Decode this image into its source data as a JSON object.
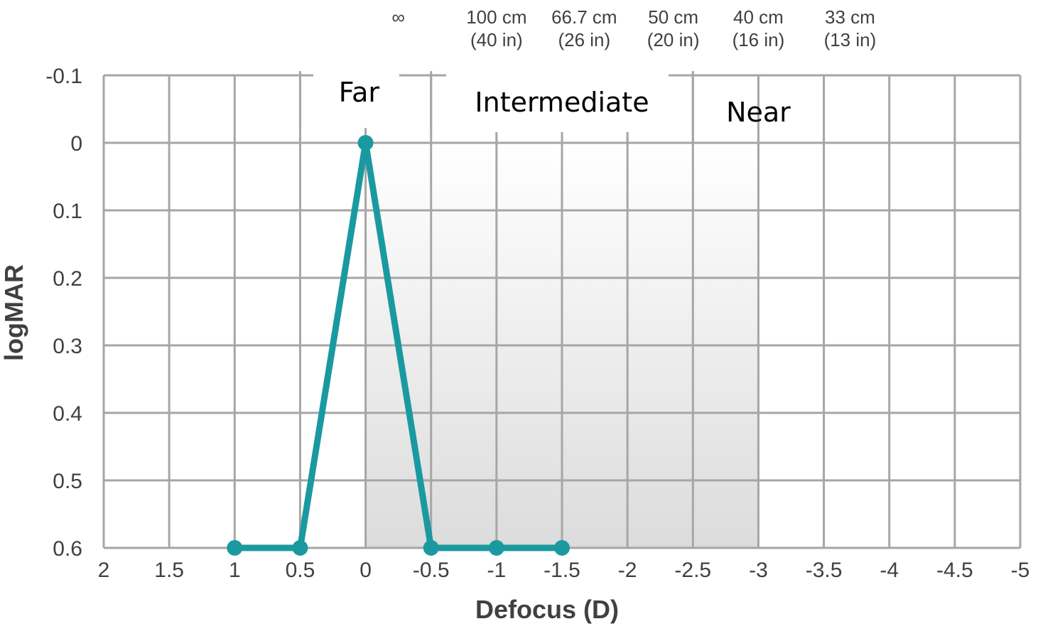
{
  "chart_data": {
    "type": "line",
    "xlabel": "Defocus (D)",
    "ylabel": "logMAR",
    "xlim": [
      2,
      -5
    ],
    "ylim": [
      0.6,
      -0.1
    ],
    "x_ticks": [
      "2",
      "1.5",
      "1",
      "0.5",
      "0",
      "-0.5",
      "-1",
      "-1.5",
      "-2",
      "-2.5",
      "-3",
      "-3.5",
      "-4",
      "-4.5",
      "-5"
    ],
    "y_ticks": [
      "-0.1",
      "0",
      "0.1",
      "0.2",
      "0.3",
      "0.4",
      "0.5",
      "0.6"
    ],
    "grid": true,
    "series": [
      {
        "x": [
          1,
          0.5,
          0,
          -0.5,
          -1,
          -1.5
        ],
        "y": [
          0.6,
          0.6,
          0,
          0.6,
          0.6,
          0.6
        ]
      }
    ],
    "top_axis": {
      "labels": [
        {
          "x": -0.25,
          "line1": "∞",
          "line2": ""
        },
        {
          "x": -1,
          "line1": "100 cm",
          "line2": "(40 in)"
        },
        {
          "x": -1.67,
          "line1": "66.7 cm",
          "line2": "(26 in)"
        },
        {
          "x": -2.35,
          "line1": "50 cm",
          "line2": "(20 in)"
        },
        {
          "x": -3.0,
          "line1": "40 cm",
          "line2": "(16 in)"
        },
        {
          "x": -3.7,
          "line1": "33 cm",
          "line2": "(13 in)"
        }
      ]
    },
    "regions": [
      {
        "name": "Far",
        "x_center": 0.05
      },
      {
        "name": "Intermediate",
        "x_center": -1.5
      },
      {
        "name": "Near",
        "x_center": -3.0
      }
    ],
    "shaded_range": [
      0,
      -3
    ],
    "colors": {
      "line": "#1a9aa0",
      "grid": "#a6a6a6",
      "text": "#404040",
      "shade_top": "#ffffff",
      "shade_bottom": "#dcdcdc"
    }
  }
}
